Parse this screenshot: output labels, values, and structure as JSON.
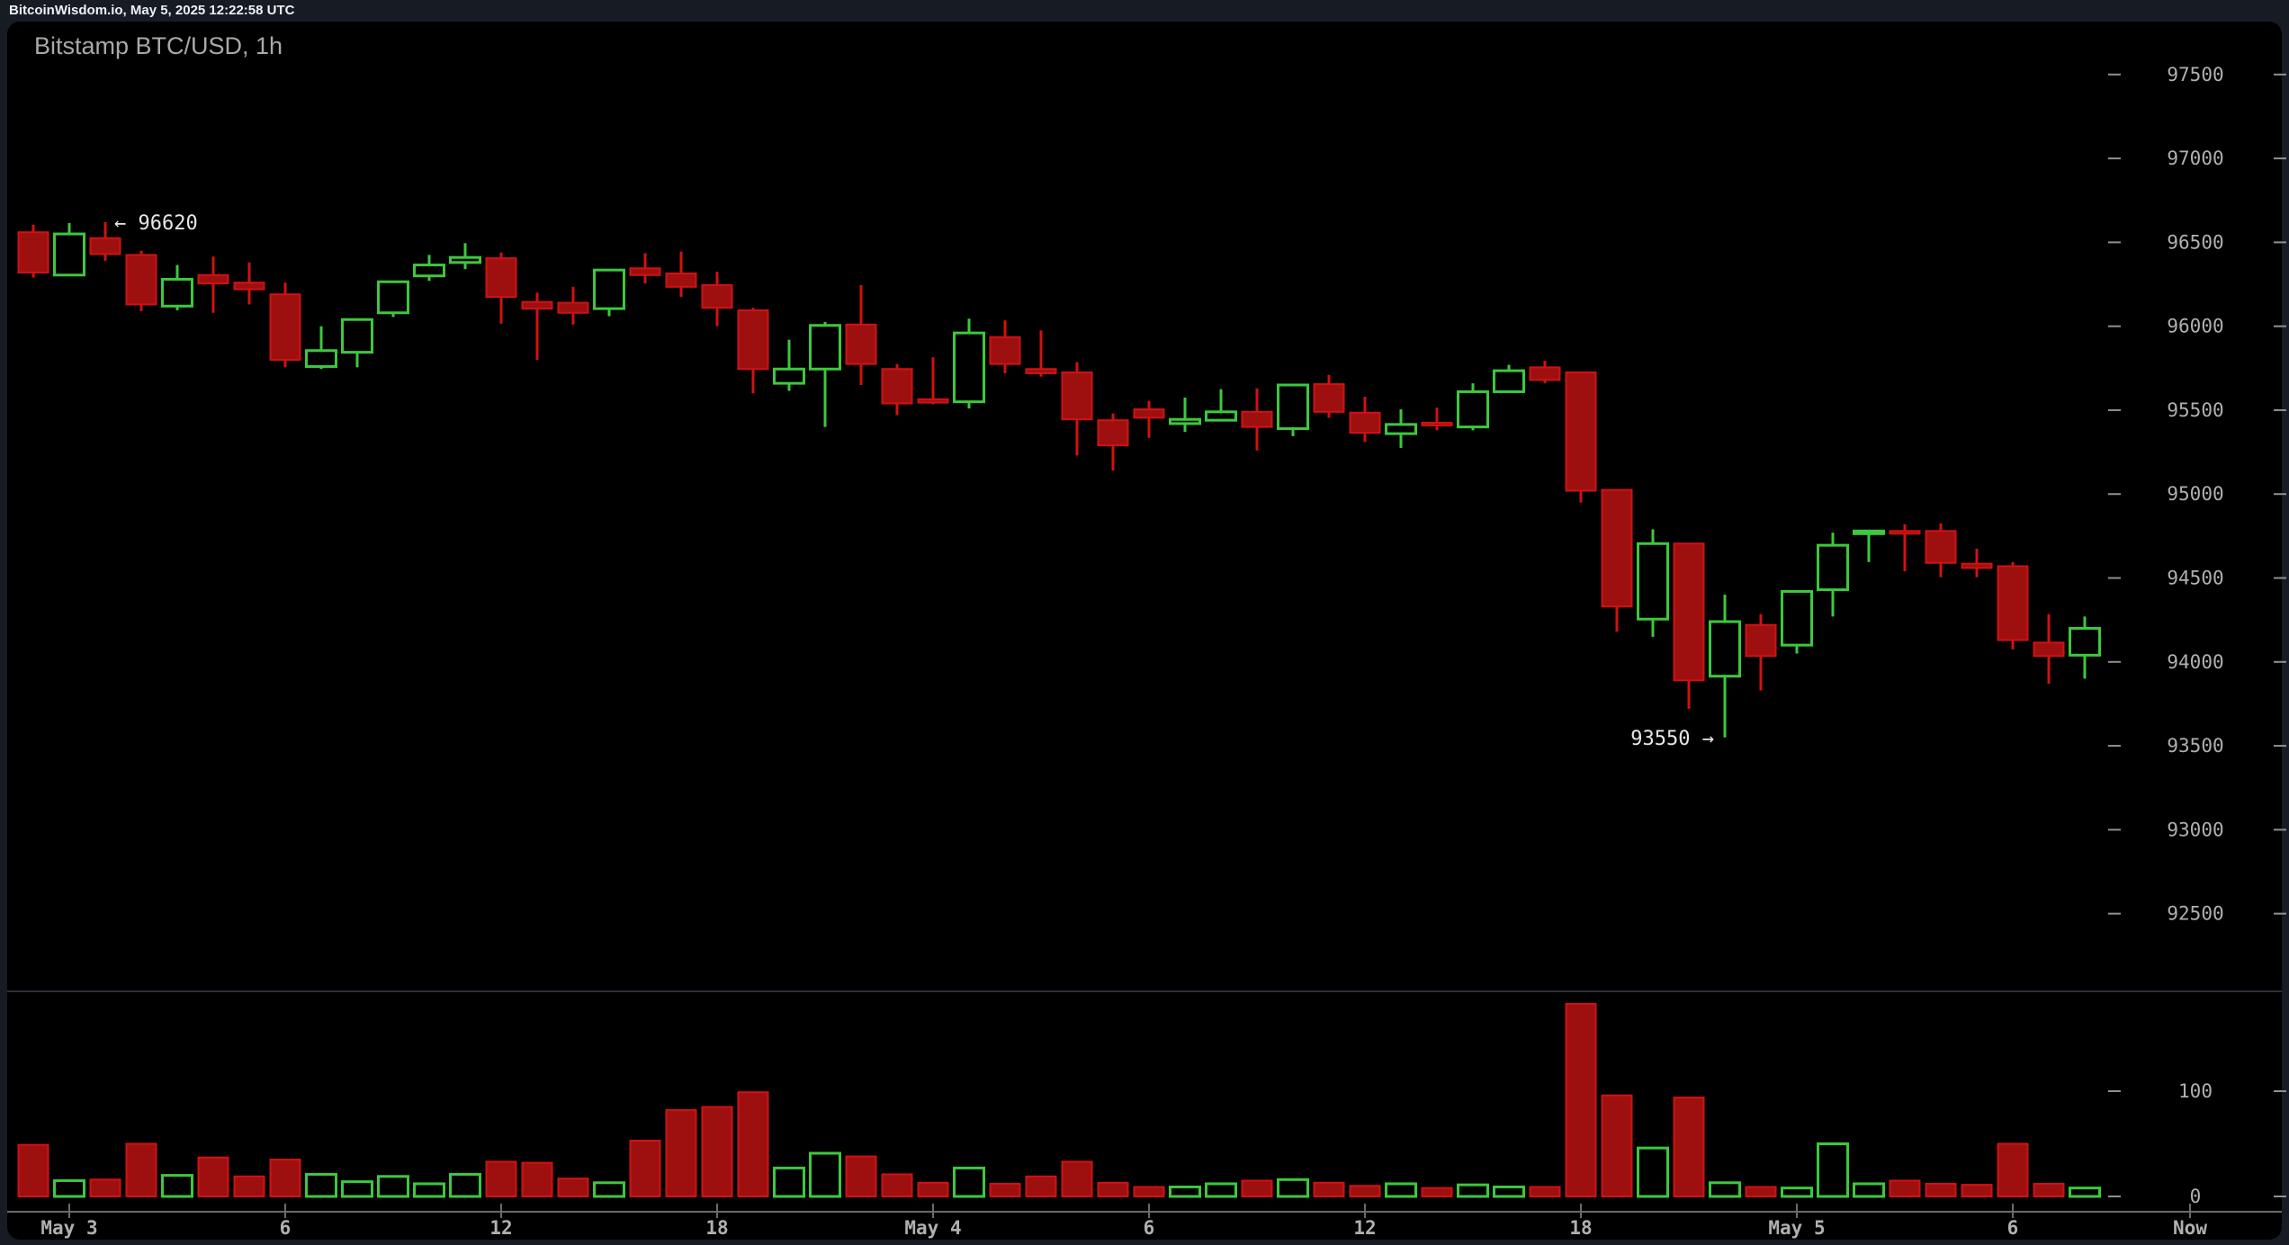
{
  "window": {
    "titlebar_text": "BitcoinWisdom.io, May 5, 2025 12:22:58 UTC"
  },
  "chart": {
    "title": "Bitstamp BTC/USD, 1h"
  },
  "colors": {
    "page_bg": "#161b24",
    "panel_bg": "#000000",
    "up_stroke": "#3dc83d",
    "down_fill": "#9e1010",
    "down_stroke": "#d01212",
    "axis_text": "#b0b0b0",
    "axis_dash": "#909090",
    "axis_line": "#6b6b6b",
    "divider": "#2b2f36",
    "annotation_text": "#e6e6e6",
    "title_text": "#a9a9a9"
  },
  "chart_data": {
    "type": "candlestick",
    "title": "Bitstamp BTC/USD, 1h",
    "exchange": "Bitstamp",
    "pair": "BTC/USD",
    "interval": "1h",
    "y_axis": {
      "tick_labels": [
        97500,
        97000,
        96500,
        96000,
        95500,
        95000,
        94500,
        94000,
        93500,
        93000,
        92500
      ],
      "step": 500,
      "side": "right"
    },
    "volume_axis": {
      "tick_labels": [
        100,
        0
      ]
    },
    "x_axis": {
      "labels": [
        {
          "text": "May 3",
          "hour": 0
        },
        {
          "text": "6",
          "hour": 6
        },
        {
          "text": "12",
          "hour": 12
        },
        {
          "text": "18",
          "hour": 18
        },
        {
          "text": "May 4",
          "hour": 24
        },
        {
          "text": "6",
          "hour": 30
        },
        {
          "text": "12",
          "hour": 36
        },
        {
          "text": "18",
          "hour": 42
        },
        {
          "text": "May 5",
          "hour": 48
        },
        {
          "text": "6",
          "hour": 54
        }
      ],
      "now_label": "Now"
    },
    "annotations": [
      {
        "text": "← 96620",
        "candle_index": 2,
        "price": 96620,
        "placement": "right"
      },
      {
        "text": "93550 →",
        "candle_index": 47,
        "price": 93550,
        "placement": "left"
      }
    ],
    "candles_format": [
      "open",
      "high",
      "low",
      "close",
      "volume"
    ],
    "candles": [
      [
        96560,
        96605,
        96290,
        96320,
        49
      ],
      [
        96305,
        96615,
        96300,
        96550,
        15
      ],
      [
        96525,
        96620,
        96390,
        96430,
        16
      ],
      [
        96425,
        96450,
        96090,
        96130,
        50
      ],
      [
        96120,
        96365,
        96095,
        96280,
        20
      ],
      [
        96305,
        96415,
        96080,
        96255,
        37
      ],
      [
        96260,
        96380,
        96130,
        96220,
        19
      ],
      [
        96190,
        96260,
        95755,
        95800,
        35
      ],
      [
        95760,
        96000,
        95745,
        95855,
        21
      ],
      [
        95845,
        96045,
        95755,
        96040,
        14
      ],
      [
        96080,
        96270,
        96055,
        96265,
        19
      ],
      [
        96300,
        96425,
        96270,
        96365,
        12
      ],
      [
        96380,
        96495,
        96340,
        96410,
        21
      ],
      [
        96405,
        96440,
        96015,
        96175,
        33
      ],
      [
        96145,
        96200,
        95800,
        96105,
        32
      ],
      [
        96140,
        96235,
        96010,
        96080,
        17
      ],
      [
        96105,
        96340,
        96060,
        96335,
        13
      ],
      [
        96345,
        96435,
        96255,
        96305,
        53
      ],
      [
        96315,
        96445,
        96175,
        96235,
        82
      ],
      [
        96245,
        96325,
        96000,
        96110,
        85
      ],
      [
        96095,
        96110,
        95600,
        95745,
        99
      ],
      [
        95660,
        95920,
        95615,
        95745,
        27
      ],
      [
        95745,
        96025,
        95400,
        96005,
        41
      ],
      [
        96010,
        96245,
        95650,
        95775,
        38
      ],
      [
        95745,
        95775,
        95470,
        95540,
        21
      ],
      [
        95565,
        95815,
        95535,
        95545,
        13
      ],
      [
        95550,
        96045,
        95510,
        95960,
        27
      ],
      [
        95935,
        96035,
        95720,
        95775,
        12
      ],
      [
        95745,
        95975,
        95700,
        95720,
        19
      ],
      [
        95725,
        95785,
        95230,
        95445,
        33
      ],
      [
        95440,
        95480,
        95140,
        95290,
        13
      ],
      [
        95505,
        95555,
        95335,
        95455,
        9
      ],
      [
        95420,
        95575,
        95370,
        95445,
        9
      ],
      [
        95440,
        95625,
        95440,
        95490,
        12
      ],
      [
        95490,
        95630,
        95260,
        95400,
        15
      ],
      [
        95390,
        95650,
        95345,
        95650,
        16
      ],
      [
        95655,
        95710,
        95455,
        95490,
        13
      ],
      [
        95485,
        95580,
        95310,
        95365,
        10
      ],
      [
        95360,
        95505,
        95275,
        95415,
        12
      ],
      [
        95425,
        95515,
        95380,
        95410,
        8
      ],
      [
        95400,
        95660,
        95380,
        95610,
        11
      ],
      [
        95610,
        95770,
        95610,
        95735,
        9
      ],
      [
        95755,
        95795,
        95660,
        95680,
        9
      ],
      [
        95725,
        95725,
        94950,
        95020,
        183
      ],
      [
        95025,
        95025,
        94180,
        94330,
        96
      ],
      [
        94255,
        94790,
        94150,
        94705,
        46
      ],
      [
        94705,
        94705,
        93720,
        93890,
        94
      ],
      [
        93915,
        94400,
        93550,
        94240,
        13
      ],
      [
        94220,
        94285,
        93830,
        94035,
        9
      ],
      [
        94100,
        94420,
        94050,
        94420,
        8
      ],
      [
        94430,
        94770,
        94270,
        94695,
        50
      ],
      [
        94780,
        94785,
        94595,
        94780,
        12
      ],
      [
        94780,
        94820,
        94540,
        94765,
        15
      ],
      [
        94780,
        94825,
        94505,
        94590,
        12
      ],
      [
        94585,
        94675,
        94505,
        94560,
        11
      ],
      [
        94570,
        94595,
        94075,
        94130,
        50
      ],
      [
        94115,
        94285,
        93870,
        94035,
        12
      ],
      [
        94040,
        94270,
        93900,
        94200,
        8
      ]
    ]
  }
}
